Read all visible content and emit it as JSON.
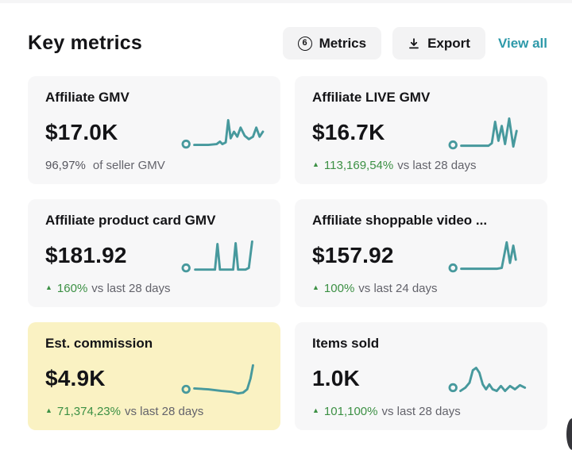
{
  "header": {
    "title": "Key metrics",
    "metrics_button": {
      "label": "Metrics",
      "count": "6"
    },
    "export_button": {
      "label": "Export"
    },
    "view_all_label": "View all"
  },
  "cards": [
    {
      "title": "Affiliate GMV",
      "value": "$17.0K",
      "change": {
        "percent": "96,97%",
        "suffix": "of seller GMV",
        "direction": "none"
      }
    },
    {
      "title": "Affiliate LIVE GMV",
      "value": "$16.7K",
      "change": {
        "percent": "113,169,54%",
        "suffix": "vs last 28 days",
        "direction": "up"
      }
    },
    {
      "title": "Affiliate product card GMV",
      "value": "$181.92",
      "change": {
        "percent": "160%",
        "suffix": "vs last 28 days",
        "direction": "up"
      }
    },
    {
      "title": "Affiliate shoppable video ...",
      "value": "$157.92",
      "change": {
        "percent": "100%",
        "suffix": "vs last 24 days",
        "direction": "up"
      }
    },
    {
      "title": "Est. commission",
      "value": "$4.9K",
      "highlighted": true,
      "change": {
        "percent": "71,374,23%",
        "suffix": "vs last 28 days",
        "direction": "up"
      }
    },
    {
      "title": "Items sold",
      "value": "1.0K",
      "change": {
        "percent": "101,100%",
        "suffix": "vs last 28 days",
        "direction": "up"
      }
    }
  ],
  "chart_data": [
    {
      "type": "line",
      "label": "Affiliate GMV sparkline",
      "axes": "hidden",
      "dot": [
        5,
        36
      ],
      "points": [
        [
          15,
          37
        ],
        [
          32,
          37
        ],
        [
          42,
          36
        ],
        [
          46,
          33
        ],
        [
          49,
          36
        ],
        [
          53,
          34
        ],
        [
          56,
          7
        ],
        [
          59,
          29
        ],
        [
          63,
          21
        ],
        [
          67,
          27
        ],
        [
          71,
          16
        ],
        [
          76,
          26
        ],
        [
          81,
          30
        ],
        [
          86,
          27
        ],
        [
          90,
          16
        ],
        [
          94,
          27
        ],
        [
          98,
          21
        ]
      ],
      "trend": "flat baseline then tall spike followed by wobbling bumps"
    },
    {
      "type": "line",
      "label": "Affiliate LIVE GMV sparkline",
      "axes": "hidden",
      "dot": [
        5,
        37
      ],
      "points": [
        [
          15,
          38
        ],
        [
          48,
          38
        ],
        [
          52,
          35
        ],
        [
          56,
          9
        ],
        [
          60,
          32
        ],
        [
          64,
          14
        ],
        [
          68,
          36
        ],
        [
          73,
          5
        ],
        [
          78,
          39
        ],
        [
          82,
          20
        ]
      ],
      "trend": "long flat baseline then sharp zigzag with rising peaks"
    },
    {
      "type": "line",
      "label": "Affiliate product card GMV sparkline",
      "axes": "hidden",
      "dot": [
        5,
        37
      ],
      "points": [
        [
          16,
          39
        ],
        [
          36,
          39
        ],
        [
          40,
          39
        ],
        [
          43,
          8
        ],
        [
          46,
          39
        ],
        [
          59,
          39
        ],
        [
          62,
          39
        ],
        [
          65,
          7
        ],
        [
          68,
          39
        ],
        [
          77,
          39
        ],
        [
          81,
          37
        ],
        [
          85,
          5
        ]
      ],
      "trend": "flat with two narrow spikes then final rise to top"
    },
    {
      "type": "line",
      "label": "Affiliate shoppable video sparkline",
      "axes": "hidden",
      "dot": [
        5,
        37
      ],
      "points": [
        [
          15,
          38
        ],
        [
          58,
          38
        ],
        [
          64,
          37
        ],
        [
          70,
          6
        ],
        [
          74,
          31
        ],
        [
          78,
          10
        ],
        [
          81,
          27
        ]
      ],
      "trend": "long flat baseline then double spike at end"
    },
    {
      "type": "line",
      "label": "Est. commission sparkline",
      "axes": "hidden",
      "dot": [
        5,
        35
      ],
      "points": [
        [
          15,
          34
        ],
        [
          32,
          35
        ],
        [
          48,
          37
        ],
        [
          60,
          38
        ],
        [
          68,
          40
        ],
        [
          74,
          39
        ],
        [
          79,
          35
        ],
        [
          83,
          22
        ],
        [
          86,
          6
        ]
      ],
      "trend": "gentle decline then steep rise at end (J curve)"
    },
    {
      "type": "line",
      "label": "Items sold sparkline",
      "axes": "hidden",
      "dot": [
        5,
        33
      ],
      "points": [
        [
          14,
          37
        ],
        [
          20,
          33
        ],
        [
          25,
          27
        ],
        [
          29,
          12
        ],
        [
          33,
          9
        ],
        [
          37,
          15
        ],
        [
          41,
          29
        ],
        [
          45,
          35
        ],
        [
          49,
          29
        ],
        [
          53,
          35
        ],
        [
          58,
          37
        ],
        [
          63,
          31
        ],
        [
          68,
          37
        ],
        [
          74,
          31
        ],
        [
          80,
          35
        ],
        [
          86,
          30
        ],
        [
          92,
          33
        ]
      ],
      "trend": "rounded hump early then small waves"
    }
  ],
  "colors": {
    "accent_teal_link": "#2d99a9",
    "sparkline_teal": "#47999d",
    "positive_green": "#3c9044",
    "card_bg": "#f7f7f8",
    "card_highlight_bg": "#faf2c3",
    "button_bg": "#f3f3f4",
    "text_primary": "#141417",
    "text_secondary": "#63636b"
  }
}
